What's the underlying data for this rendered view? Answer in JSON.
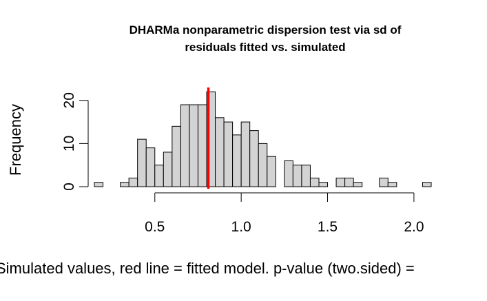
{
  "chart_data": {
    "type": "bar",
    "title_lines": [
      "DHARMa nonparametric dispersion test via sd of",
      "residuals fitted vs. simulated"
    ],
    "xlabel": "Simulated values, red line = fitted model. p-value (two.sided) =",
    "ylabel": "Frequency",
    "bin_width": 0.05,
    "bin_starts": [
      0.15,
      0.2,
      0.25,
      0.3,
      0.35,
      0.4,
      0.45,
      0.5,
      0.55,
      0.6,
      0.65,
      0.7,
      0.75,
      0.8,
      0.85,
      0.9,
      0.95,
      1.0,
      1.05,
      1.1,
      1.15,
      1.2,
      1.25,
      1.3,
      1.35,
      1.4,
      1.45,
      1.5,
      1.55,
      1.6,
      1.65,
      1.7,
      1.75,
      1.8,
      1.85,
      1.9,
      1.95,
      2.0,
      2.05
    ],
    "counts": [
      1,
      0,
      0,
      1,
      2,
      11,
      9,
      5,
      8,
      14,
      19,
      19,
      19,
      22,
      16,
      15,
      12,
      15,
      13,
      10,
      7,
      0,
      6,
      5,
      5,
      2,
      1,
      0,
      2,
      2,
      1,
      0,
      0,
      2,
      1,
      0,
      0,
      0,
      1
    ],
    "x_ticks": [
      0.5,
      1.0,
      1.5,
      2.0
    ],
    "x_tick_labels": [
      "0.5",
      "1.0",
      "1.5",
      "2.0"
    ],
    "y_ticks": [
      0,
      10,
      20
    ],
    "y_tick_labels": [
      "0",
      "10",
      "20"
    ],
    "xlim": [
      0.15,
      2.1
    ],
    "ylim": [
      0,
      23
    ],
    "fitted_value": 0.81,
    "colors": {
      "bar_fill": "#d3d3d3",
      "bar_stroke": "#000000",
      "fitted_line": "#ff0000"
    },
    "grid": false,
    "legend": "none"
  }
}
